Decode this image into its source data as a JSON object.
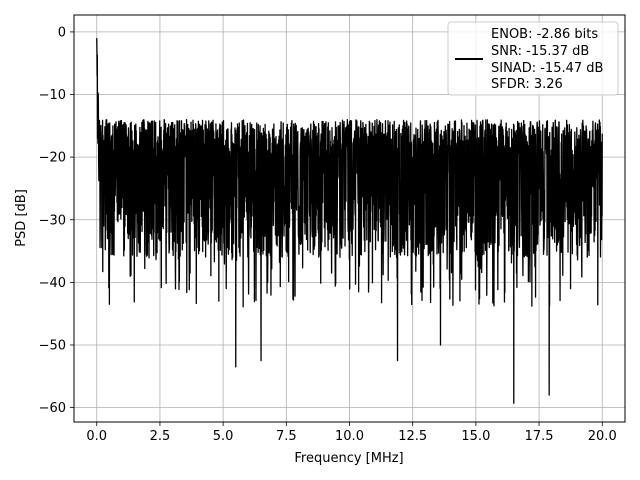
{
  "chart_data": {
    "type": "line",
    "xlabel": "Frequency [MHz]",
    "ylabel": "PSD [dB]",
    "xlim": [
      -0.9,
      20.9
    ],
    "ylim": [
      -62.3,
      2.7
    ],
    "xticks": [
      0.0,
      2.5,
      5.0,
      7.5,
      10.0,
      12.5,
      15.0,
      17.5,
      20.0
    ],
    "xtick_labels": [
      "0.0",
      "2.5",
      "5.0",
      "7.5",
      "10.0",
      "12.5",
      "15.0",
      "17.5",
      "20.0"
    ],
    "yticks": [
      0,
      -10,
      -20,
      -30,
      -40,
      -50,
      -60
    ],
    "ytick_labels": [
      "0",
      "−10",
      "−20",
      "−30",
      "−40",
      "−50",
      "−60"
    ],
    "grid": true,
    "legend_position": "top-right",
    "legend": {
      "lines": [
        "ENOB: -2.86 bits",
        "SNR: -15.37 dB",
        "SINAD: -15.47 dB",
        "SFDR: 3.26"
      ],
      "color": "#000000"
    },
    "series": [
      {
        "color": "#000000",
        "noise_floor_db": [
          -14,
          -36
        ],
        "x": [
          0.0,
          0.02,
          0.04,
          0.06,
          0.08,
          0.1,
          0.15,
          0.2,
          0.3,
          0.5,
          1.0,
          2.0,
          5.0,
          10.0,
          15.0,
          20.0
        ],
        "y": [
          -1,
          -6,
          -17,
          -11,
          -25,
          -14,
          -19,
          -26,
          -22,
          -21,
          -21,
          -22,
          -22,
          -22,
          -22,
          -23
        ],
        "notable_dips": [
          {
            "x": 0.28,
            "y": -31
          },
          {
            "x": 0.5,
            "y": -43.5
          },
          {
            "x": 5.5,
            "y": -53.5
          },
          {
            "x": 6.5,
            "y": -52.5
          },
          {
            "x": 11.9,
            "y": -52.5
          },
          {
            "x": 13.6,
            "y": -50
          },
          {
            "x": 16.5,
            "y": -59.3
          },
          {
            "x": 17.9,
            "y": -58
          }
        ]
      }
    ]
  }
}
